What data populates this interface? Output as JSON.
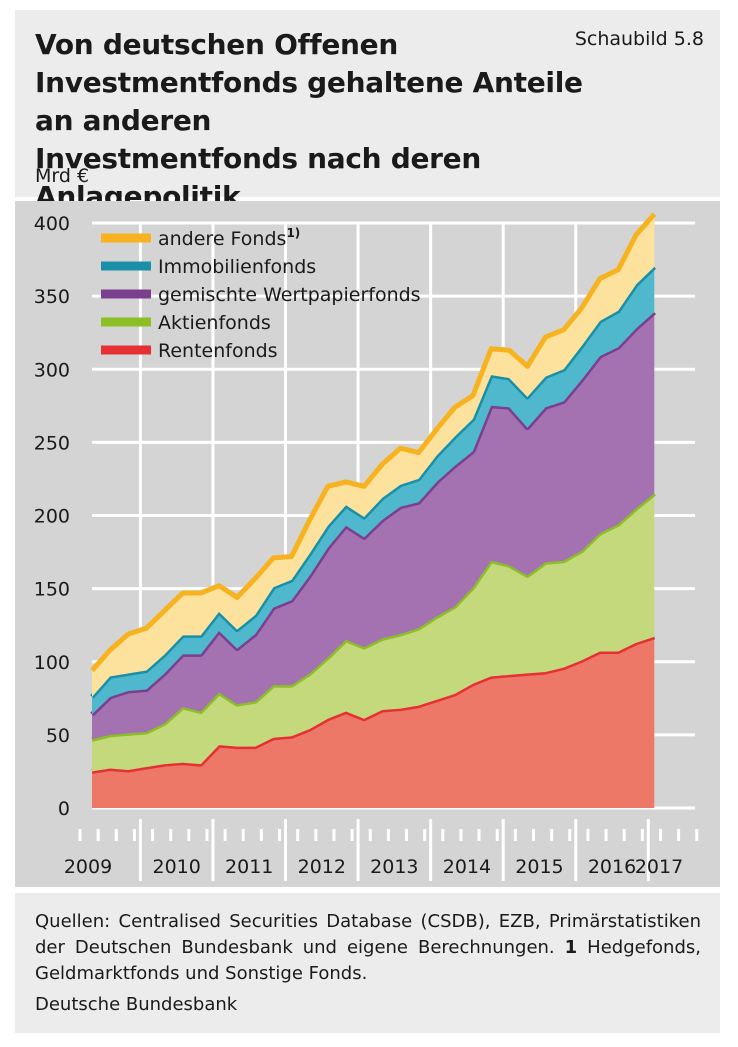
{
  "header": {
    "title_lines": [
      "Von deutschen Offenen",
      "Investmentfonds gehaltene Anteile an anderen",
      "Investmentfonds nach deren Anlagepolitik"
    ],
    "figure_label": "Schaubild 5.8",
    "unit": "Mrd €"
  },
  "footer": {
    "sources_prefix": "Quellen: Centralised Securities Database (CSDB), EZB, Primärstatistiken der Deutschen Bundesbank und eigene Berechnungen.",
    "footnote_marker": "1",
    "footnote_text": "Hedge­fonds, Geldmarktfonds und Sonstige Fonds.",
    "publisher": "Deutsche Bundesbank"
  },
  "chart_data": {
    "type": "area",
    "stacked": true,
    "x_start": "2009-Q2",
    "frequency": "quarterly",
    "ylim": [
      0,
      400
    ],
    "yticks": [
      0,
      50,
      100,
      150,
      200,
      250,
      300,
      350,
      400
    ],
    "xtick_labels": [
      "2009",
      "2010",
      "2011",
      "2012",
      "2013",
      "2014",
      "2015",
      "2016",
      "2017"
    ],
    "grid": true,
    "legend_position": "top-left",
    "legend": [
      {
        "key": "andere",
        "label": "andere Fonds",
        "sup": "1)"
      },
      {
        "key": "immo",
        "label": "Immobilienfonds",
        "sup": ""
      },
      {
        "key": "gemischt",
        "label": "gemischte Wertpapierfonds",
        "sup": ""
      },
      {
        "key": "aktien",
        "label": "Aktienfonds",
        "sup": ""
      },
      {
        "key": "renten",
        "label": "Rentenfonds",
        "sup": ""
      }
    ],
    "colors": {
      "renten_fill": "#ee7868",
      "renten_line": "#e53034",
      "aktien_fill": "#c3d97c",
      "aktien_line": "#8cbf26",
      "gemischt_fill": "#a472b0",
      "gemischt_line": "#7a3f8f",
      "immo_fill": "#4fb8cc",
      "immo_line": "#1a8fa8",
      "andere_fill": "#fde29d",
      "andere_line": "#f7b21f"
    },
    "series": [
      {
        "name": "Rentenfonds",
        "values": [
          25,
          27,
          26,
          28,
          30,
          31,
          30,
          43,
          42,
          42,
          48,
          49,
          54,
          61,
          66,
          61,
          67,
          68,
          70,
          74,
          78,
          85,
          90,
          91,
          92,
          93,
          96,
          101,
          107,
          107,
          113,
          117
        ]
      },
      {
        "name": "Aktienfonds",
        "values": [
          22,
          23,
          25,
          24,
          28,
          38,
          36,
          36,
          29,
          31,
          36,
          35,
          38,
          42,
          49,
          49,
          49,
          51,
          53,
          57,
          60,
          66,
          79,
          75,
          67,
          75,
          73,
          75,
          81,
          87,
          92,
          98
        ]
      },
      {
        "name": "gemischte Wertpapierfonds",
        "values": [
          17,
          26,
          29,
          29,
          34,
          36,
          39,
          42,
          38,
          46,
          53,
          58,
          67,
          75,
          78,
          75,
          81,
          87,
          86,
          92,
          96,
          93,
          106,
          108,
          101,
          106,
          109,
          117,
          121,
          121,
          123,
          124
        ]
      },
      {
        "name": "Immobilienfonds",
        "values": [
          12,
          14,
          12,
          13,
          13,
          13,
          13,
          13,
          13,
          13,
          14,
          14,
          15,
          15,
          14,
          14,
          15,
          15,
          16,
          18,
          20,
          22,
          21,
          20,
          21,
          21,
          22,
          23,
          24,
          25,
          30,
          31
        ]
      },
      {
        "name": "andere Fonds",
        "values": [
          18,
          18,
          27,
          29,
          30,
          29,
          29,
          18,
          22,
          25,
          20,
          16,
          23,
          27,
          16,
          21,
          23,
          25,
          18,
          18,
          20,
          16,
          18,
          19,
          21,
          27,
          27,
          26,
          29,
          28,
          34,
          36
        ]
      }
    ]
  }
}
